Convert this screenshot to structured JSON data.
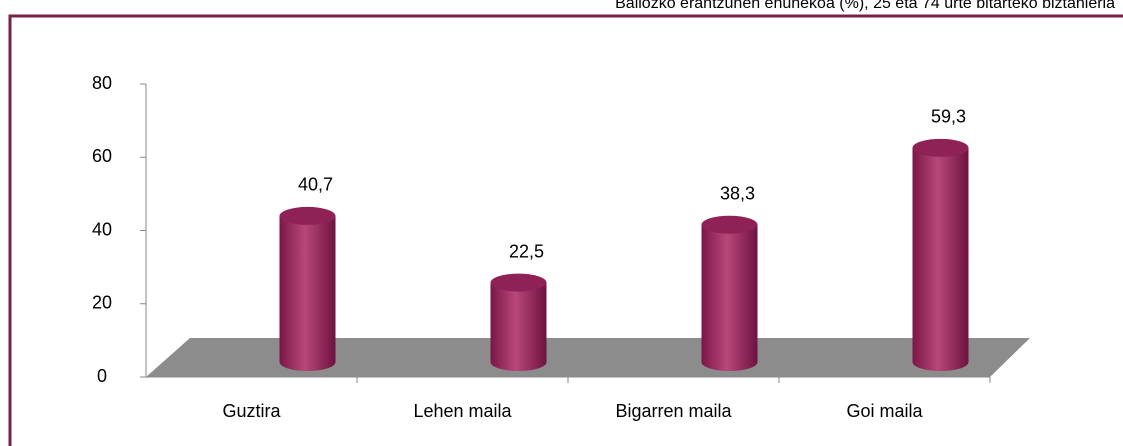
{
  "chart_data": {
    "type": "bar3d",
    "title": "Baliozko erantzunen ehunekoa (%), 25 eta 74 urte bitarteko biztanleria",
    "categories": [
      "Guztira",
      "Lehen maila",
      "Bigarren maila",
      "Goi maila"
    ],
    "values": [
      40.7,
      22.5,
      38.3,
      59.3
    ],
    "value_labels": [
      "40,7",
      "22,5",
      "38,3",
      "59,3"
    ],
    "color": "#9b2a5e",
    "ylim": [
      0,
      80
    ],
    "yticks": [
      0,
      20,
      40,
      60,
      80
    ]
  }
}
